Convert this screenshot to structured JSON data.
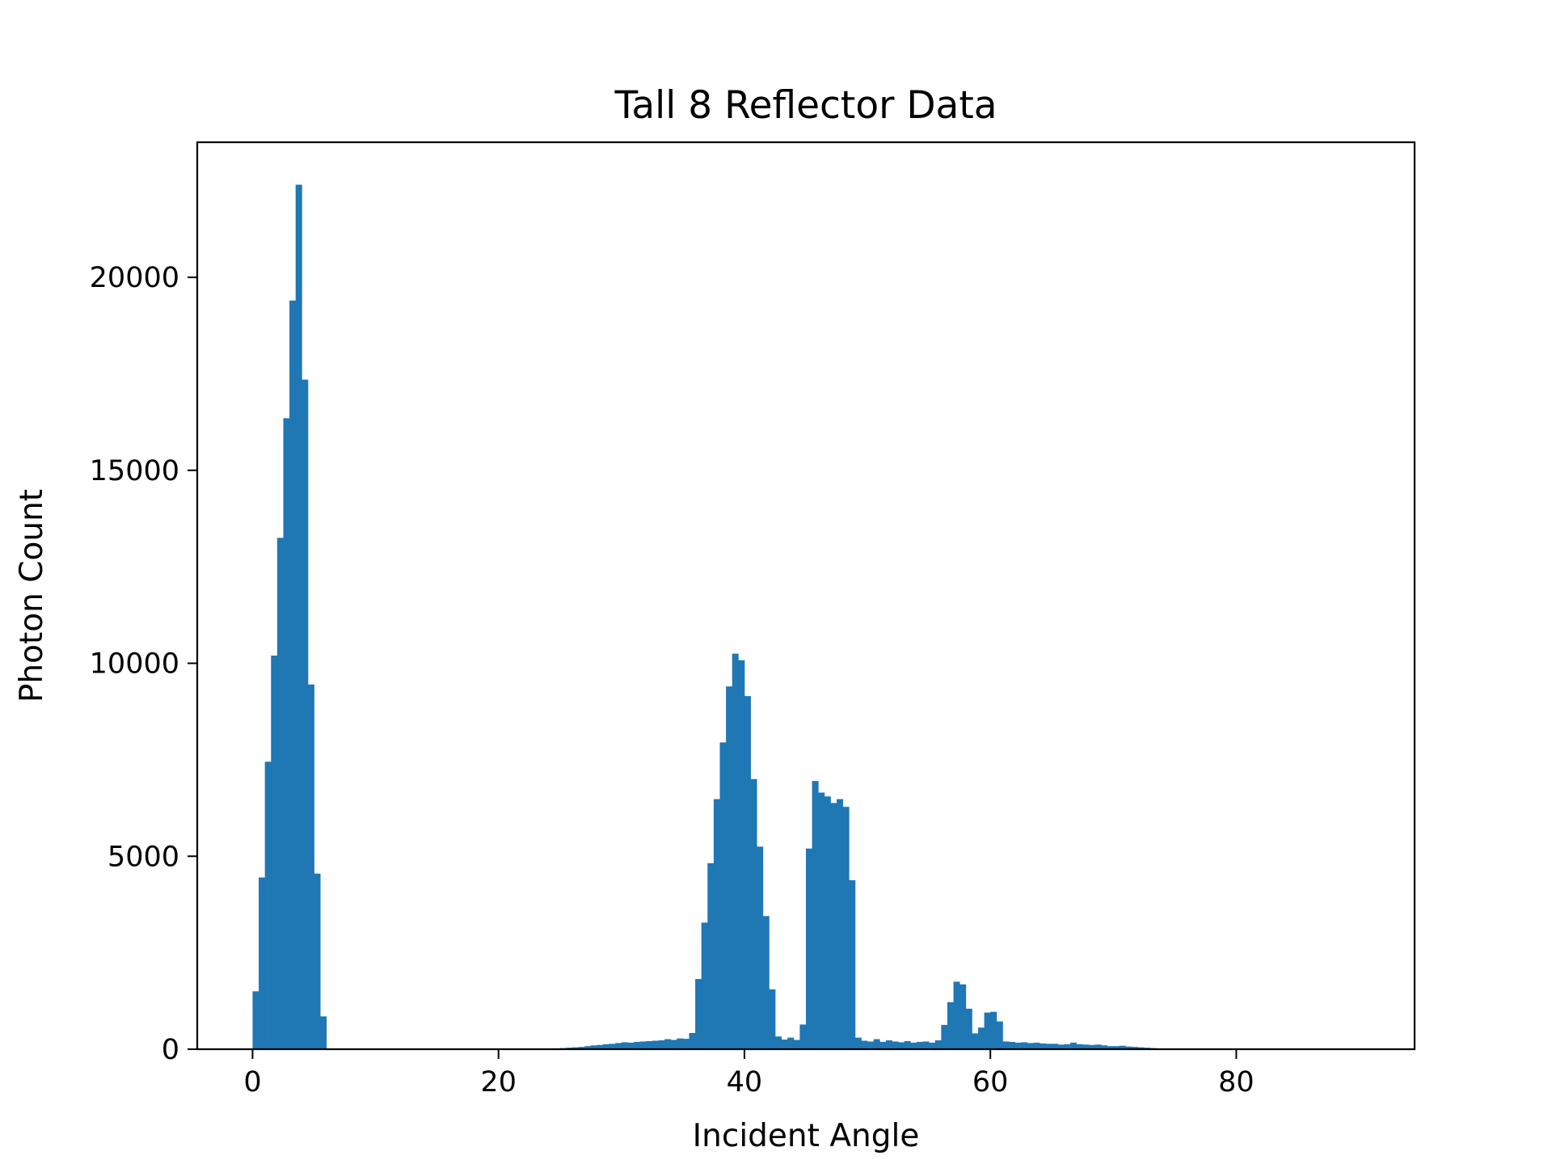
{
  "chart_data": {
    "type": "bar",
    "title": "Tall 8 Reflector Data",
    "xlabel": "Incident Angle",
    "ylabel": "Photon Count",
    "xlim": [
      -4.5,
      94.5
    ],
    "ylim": [
      0,
      23500
    ],
    "xticks": [
      0,
      20,
      40,
      60,
      80
    ],
    "yticks": [
      0,
      5000,
      10000,
      15000,
      20000
    ],
    "grid": false,
    "color": "#1f77b4",
    "bin_width": 0.5,
    "bins": [
      [
        0.0,
        1500
      ],
      [
        0.5,
        4450
      ],
      [
        1.0,
        7450
      ],
      [
        1.5,
        10200
      ],
      [
        2.0,
        13250
      ],
      [
        2.5,
        16350
      ],
      [
        3.0,
        19400
      ],
      [
        3.5,
        22400
      ],
      [
        4.0,
        17350
      ],
      [
        4.5,
        9450
      ],
      [
        5.0,
        4550
      ],
      [
        5.5,
        850
      ],
      [
        25.0,
        30
      ],
      [
        25.5,
        40
      ],
      [
        26.0,
        50
      ],
      [
        26.5,
        60
      ],
      [
        27.0,
        80
      ],
      [
        27.5,
        100
      ],
      [
        28.0,
        110
      ],
      [
        28.5,
        130
      ],
      [
        29.0,
        140
      ],
      [
        29.5,
        160
      ],
      [
        30.0,
        180
      ],
      [
        30.5,
        170
      ],
      [
        31.0,
        190
      ],
      [
        31.5,
        200
      ],
      [
        32.0,
        210
      ],
      [
        32.5,
        220
      ],
      [
        33.0,
        230
      ],
      [
        33.5,
        260
      ],
      [
        34.0,
        240
      ],
      [
        34.5,
        280
      ],
      [
        35.0,
        270
      ],
      [
        35.5,
        420
      ],
      [
        36.0,
        1820
      ],
      [
        36.5,
        3280
      ],
      [
        37.0,
        4820
      ],
      [
        37.5,
        6480
      ],
      [
        38.0,
        7950
      ],
      [
        38.5,
        9400
      ],
      [
        39.0,
        10250
      ],
      [
        39.5,
        10080
      ],
      [
        40.0,
        9150
      ],
      [
        40.5,
        7000
      ],
      [
        41.0,
        5250
      ],
      [
        41.5,
        3450
      ],
      [
        42.0,
        1550
      ],
      [
        42.5,
        330
      ],
      [
        43.0,
        250
      ],
      [
        43.5,
        300
      ],
      [
        44.0,
        240
      ],
      [
        44.5,
        640
      ],
      [
        45.0,
        5200
      ],
      [
        45.5,
        6950
      ],
      [
        46.0,
        6650
      ],
      [
        46.5,
        6550
      ],
      [
        47.0,
        6380
      ],
      [
        47.5,
        6480
      ],
      [
        48.0,
        6280
      ],
      [
        48.5,
        4380
      ],
      [
        49.0,
        300
      ],
      [
        49.5,
        220
      ],
      [
        50.0,
        200
      ],
      [
        50.5,
        260
      ],
      [
        51.0,
        190
      ],
      [
        51.5,
        230
      ],
      [
        52.0,
        200
      ],
      [
        52.5,
        180
      ],
      [
        53.0,
        210
      ],
      [
        53.5,
        170
      ],
      [
        54.0,
        190
      ],
      [
        54.5,
        200
      ],
      [
        55.0,
        170
      ],
      [
        55.5,
        230
      ],
      [
        56.0,
        630
      ],
      [
        56.5,
        1220
      ],
      [
        57.0,
        1750
      ],
      [
        57.5,
        1680
      ],
      [
        58.0,
        1050
      ],
      [
        58.5,
        410
      ],
      [
        59.0,
        560
      ],
      [
        59.5,
        950
      ],
      [
        60.0,
        970
      ],
      [
        60.5,
        720
      ],
      [
        61.0,
        200
      ],
      [
        61.5,
        190
      ],
      [
        62.0,
        170
      ],
      [
        62.5,
        180
      ],
      [
        63.0,
        160
      ],
      [
        63.5,
        170
      ],
      [
        64.0,
        150
      ],
      [
        64.5,
        140
      ],
      [
        65.0,
        140
      ],
      [
        65.5,
        120
      ],
      [
        66.0,
        130
      ],
      [
        66.5,
        170
      ],
      [
        67.0,
        130
      ],
      [
        67.5,
        120
      ],
      [
        68.0,
        110
      ],
      [
        68.5,
        120
      ],
      [
        69.0,
        100
      ],
      [
        69.5,
        80
      ],
      [
        70.0,
        80
      ],
      [
        70.5,
        90
      ],
      [
        71.0,
        70
      ],
      [
        71.5,
        60
      ],
      [
        72.0,
        50
      ],
      [
        72.5,
        40
      ],
      [
        73.0,
        30
      ],
      [
        73.5,
        20
      ],
      [
        74.0,
        10
      ]
    ]
  }
}
